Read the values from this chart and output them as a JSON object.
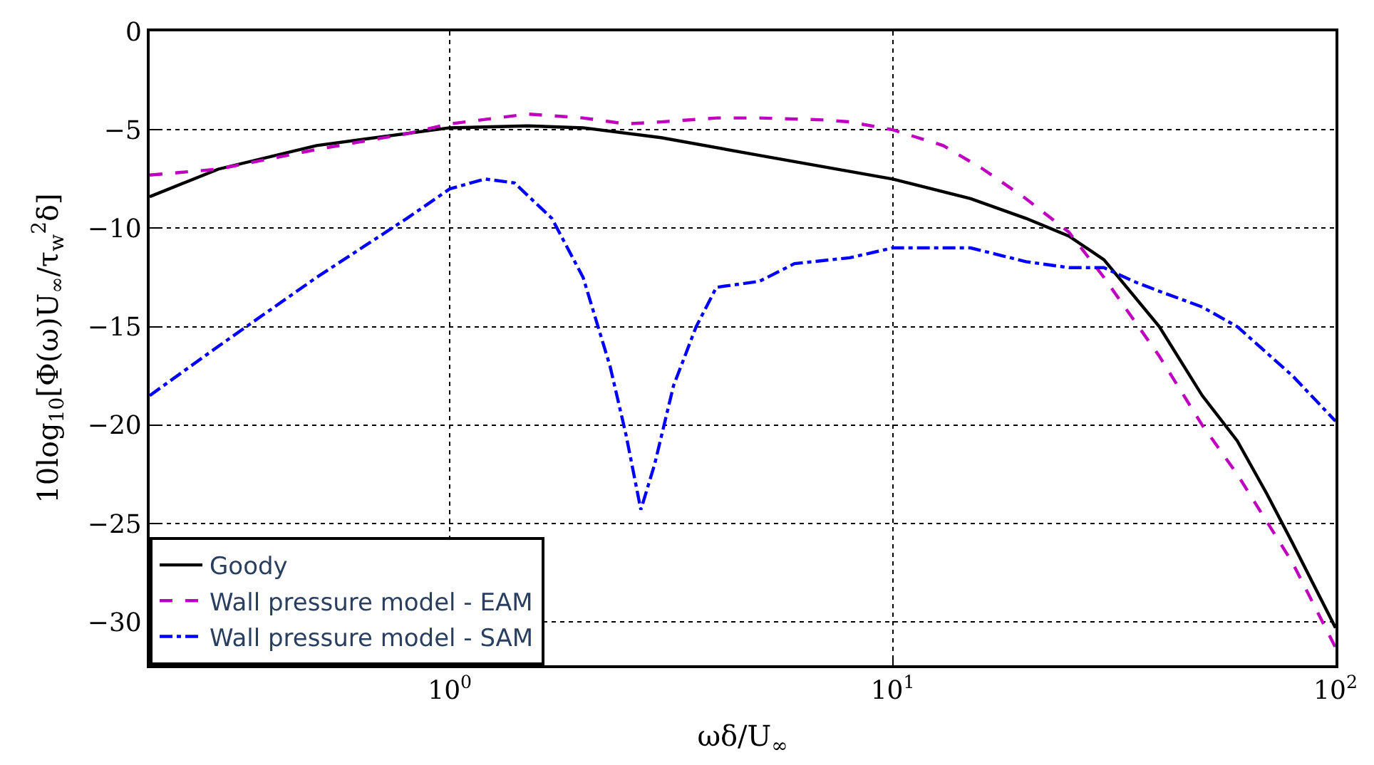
{
  "chart_data": {
    "type": "line",
    "xlabel": "ωδ/U$_{∞}$",
    "ylabel": "10log$_{10}$[Φ(ω)U$_{∞}$/τ$_{w}$$^{2}$δ]",
    "log": "x",
    "grid": true,
    "legend": "bottom left",
    "xlim": [
      0.21,
      100
    ],
    "xticks": [
      {
        "value": 1,
        "label": "10$^{0}$"
      },
      {
        "value": 10,
        "label": "10$^{1}$"
      },
      {
        "value": 100,
        "label": "10$^{2}$"
      }
    ],
    "ylim": [
      -32.2,
      0
    ],
    "yticks": [
      {
        "value": 0,
        "label": "0"
      },
      {
        "value": -5,
        "label": "−5"
      },
      {
        "value": -10,
        "label": "−10"
      },
      {
        "value": -15,
        "label": "−15"
      },
      {
        "value": -20,
        "label": "−20"
      },
      {
        "value": -25,
        "label": "−25"
      },
      {
        "value": -30,
        "label": "−30"
      }
    ],
    "series": [
      {
        "name": "Goody",
        "color": "#000000",
        "line_style": "solid",
        "x": [
          0.21,
          0.3,
          0.5,
          1,
          1.5,
          2,
          3,
          5,
          10,
          15,
          20,
          25,
          30,
          40,
          50,
          60,
          70,
          80,
          100
        ],
        "values": [
          -8.4,
          -7,
          -5.8,
          -4.9,
          -4.8,
          -4.9,
          -5.4,
          -6.3,
          -7.5,
          -8.5,
          -9.5,
          -10.4,
          -11.6,
          -15,
          -18.5,
          -20.8,
          -23.5,
          -26,
          -30.3
        ]
      },
      {
        "name": "Wall pressure model - EAM",
        "color": "#bf00bf",
        "line_style": "dashed",
        "x": [
          0.21,
          0.3,
          0.5,
          0.8,
          1,
          1.5,
          2,
          2.5,
          3,
          4,
          5,
          7,
          8,
          10,
          13,
          16,
          20,
          25,
          30,
          40,
          50,
          60,
          80,
          100
        ],
        "values": [
          -7.3,
          -7.0,
          -6.0,
          -5.2,
          -4.7,
          -4.2,
          -4.4,
          -4.7,
          -4.6,
          -4.4,
          -4.4,
          -4.5,
          -4.6,
          -5.0,
          -5.8,
          -7,
          -8.5,
          -10.2,
          -12.5,
          -16.5,
          -20,
          -22.5,
          -27,
          -31.3
        ]
      },
      {
        "name": "Wall pressure model - SAM",
        "color": "#0000ff",
        "line_style": "dashdot",
        "x": [
          0.21,
          0.3,
          0.5,
          0.8,
          1,
          1.2,
          1.4,
          1.7,
          2,
          2.3,
          2.5,
          2.7,
          2.9,
          3.2,
          3.6,
          4,
          5,
          6,
          8,
          10,
          15,
          20,
          25,
          30,
          35,
          40,
          50,
          60,
          80,
          100
        ],
        "values": [
          -18.5,
          -16,
          -12.5,
          -9.5,
          -8,
          -7.5,
          -7.7,
          -9.5,
          -12.5,
          -17,
          -20.5,
          -24.3,
          -22,
          -18,
          -15,
          -13,
          -12.7,
          -11.8,
          -11.5,
          -11,
          -11,
          -11.7,
          -12,
          -12,
          -12.7,
          -13.2,
          -14,
          -15,
          -17.5,
          -19.8
        ]
      }
    ]
  }
}
